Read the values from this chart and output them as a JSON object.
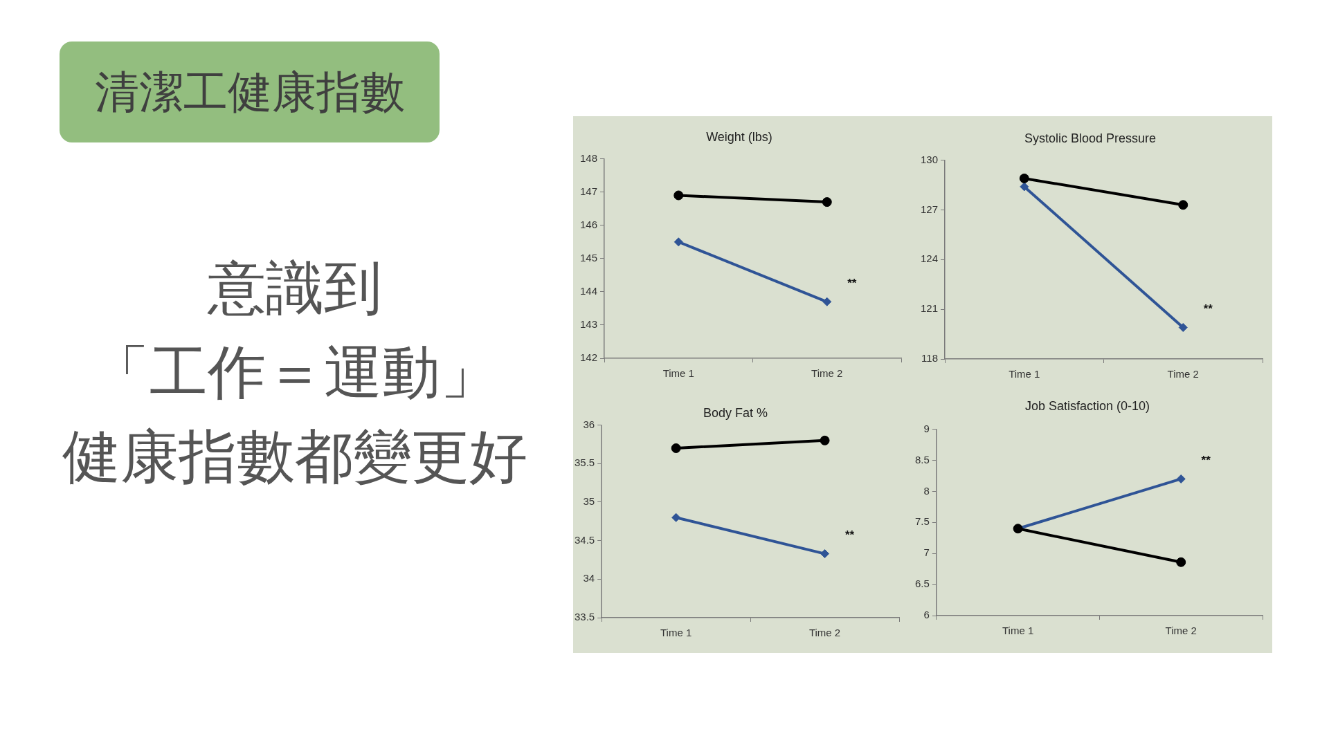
{
  "chart_data": [
    {
      "type": "other",
      "title": "清潔工健康指數",
      "annotations": [
        "意識到",
        "「工作＝運動」",
        "健康指數都變更好"
      ]
    },
    {
      "type": "line",
      "title": "Weight (lbs)",
      "categories": [
        "Time 1",
        "Time 2"
      ],
      "series": [
        {
          "color": "#000000",
          "marker": "circle",
          "values": [
            146.9,
            146.7
          ]
        },
        {
          "color": "#2f5496",
          "marker": "diamond",
          "values": [
            145.5,
            143.7
          ]
        }
      ],
      "ylim": [
        142,
        148
      ],
      "yticks": [
        142,
        143,
        144,
        145,
        146,
        147,
        148
      ],
      "annotations": [
        "**"
      ]
    },
    {
      "type": "line",
      "title": "Systolic Blood Pressure",
      "categories": [
        "Time 1",
        "Time 2"
      ],
      "series": [
        {
          "color": "#000000",
          "marker": "circle",
          "values": [
            128.9,
            127.3
          ]
        },
        {
          "color": "#2f5496",
          "marker": "diamond",
          "values": [
            128.4,
            119.9
          ]
        }
      ],
      "ylim": [
        118,
        130
      ],
      "yticks": [
        118,
        121,
        124,
        127,
        130
      ],
      "annotations": [
        "**"
      ]
    },
    {
      "type": "line",
      "title": "Body Fat %",
      "categories": [
        "Time 1",
        "Time 2"
      ],
      "series": [
        {
          "color": "#000000",
          "marker": "circle",
          "values": [
            35.7,
            35.8
          ]
        },
        {
          "color": "#2f5496",
          "marker": "diamond",
          "values": [
            34.8,
            34.33
          ]
        }
      ],
      "ylim": [
        33.5,
        36
      ],
      "yticks": [
        33.5,
        34,
        34.5,
        35,
        35.5,
        36
      ],
      "annotations": [
        "**"
      ]
    },
    {
      "type": "line",
      "title": "Job Satisfaction (0-10)",
      "categories": [
        "Time 1",
        "Time 2"
      ],
      "series": [
        {
          "color": "#000000",
          "marker": "circle",
          "values": [
            7.4,
            6.86
          ]
        },
        {
          "color": "#2f5496",
          "marker": "diamond",
          "values": [
            7.4,
            8.2
          ]
        }
      ],
      "ylim": [
        6,
        9
      ],
      "yticks": [
        6,
        6.5,
        7,
        7.5,
        8,
        8.5,
        9
      ],
      "annotations": [
        "**"
      ]
    }
  ]
}
